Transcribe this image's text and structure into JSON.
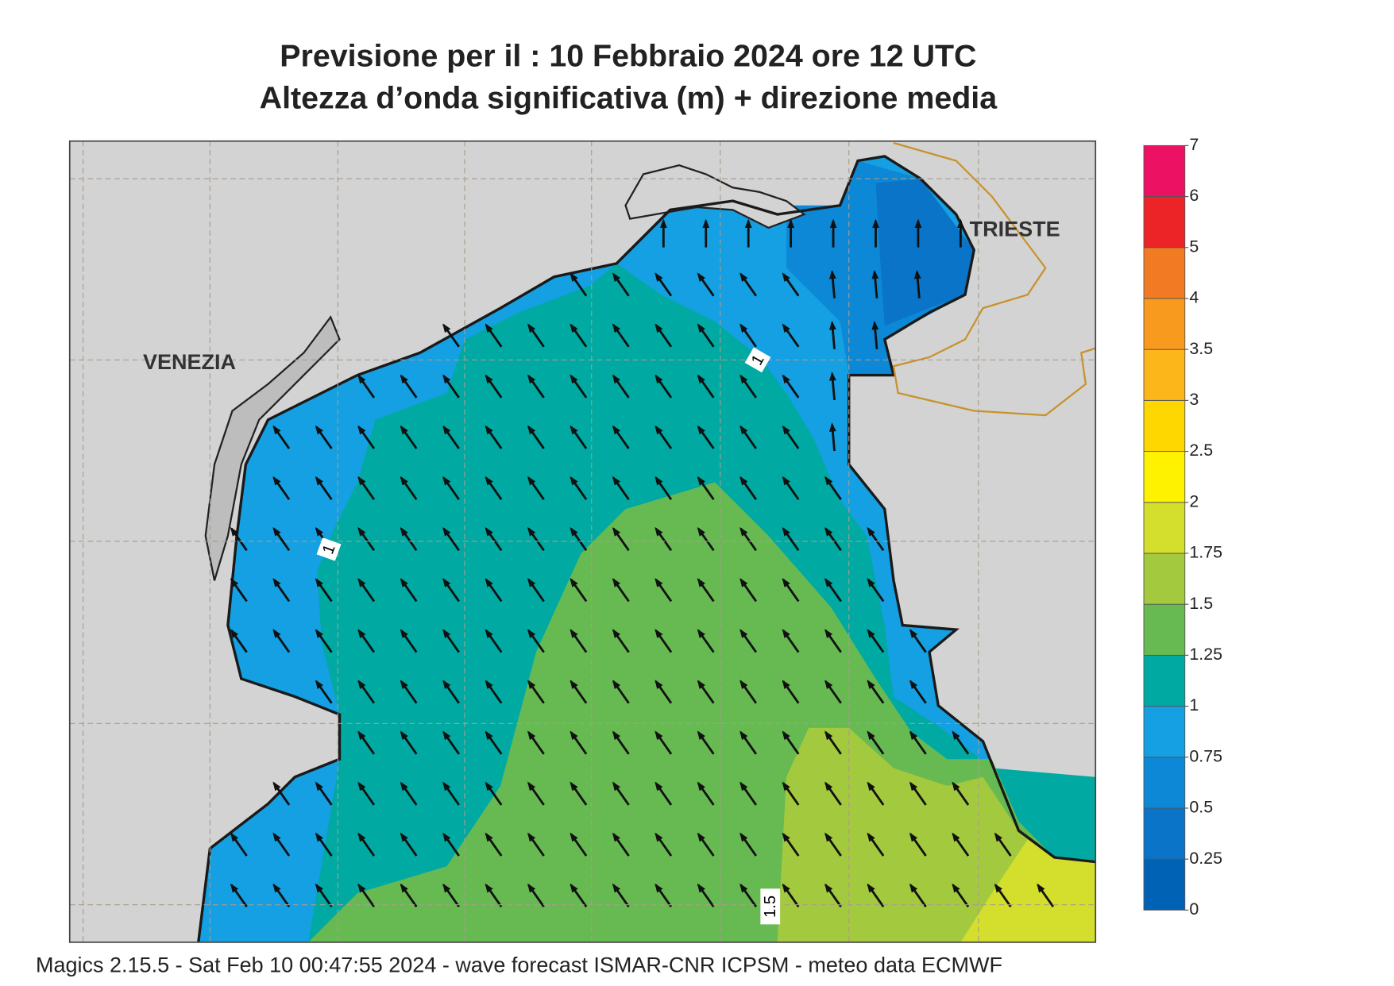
{
  "title": {
    "line1": "Previsione per il  :  10  Febbraio 2024   ore 12 UTC",
    "line2": "Altezza d’onda significativa (m) + direzione media"
  },
  "map": {
    "places": [
      "VENEZIA",
      "TRIESTE"
    ],
    "contour_labels": [
      "1",
      "1",
      "1.5"
    ]
  },
  "legend": {
    "levels": [
      0,
      0.25,
      0.5,
      0.75,
      1,
      1.25,
      1.5,
      1.75,
      2,
      2.5,
      3,
      3.5,
      4,
      5,
      6,
      7
    ],
    "colors": [
      "#0062b4",
      "#0a74c8",
      "#0d88d6",
      "#14a0e2",
      "#00aaa2",
      "#67ba52",
      "#a3c93e",
      "#d3df2c",
      "#fff200",
      "#ffd700",
      "#fdb61a",
      "#f89a1e",
      "#f27a22",
      "#ec2428",
      "#ec1163"
    ]
  },
  "footer": "Magics 2.15.5 - Sat Feb 10 00:47:55 2024 - wave forecast  ISMAR-CNR  ICPSM - meteo data   ECMWF"
}
